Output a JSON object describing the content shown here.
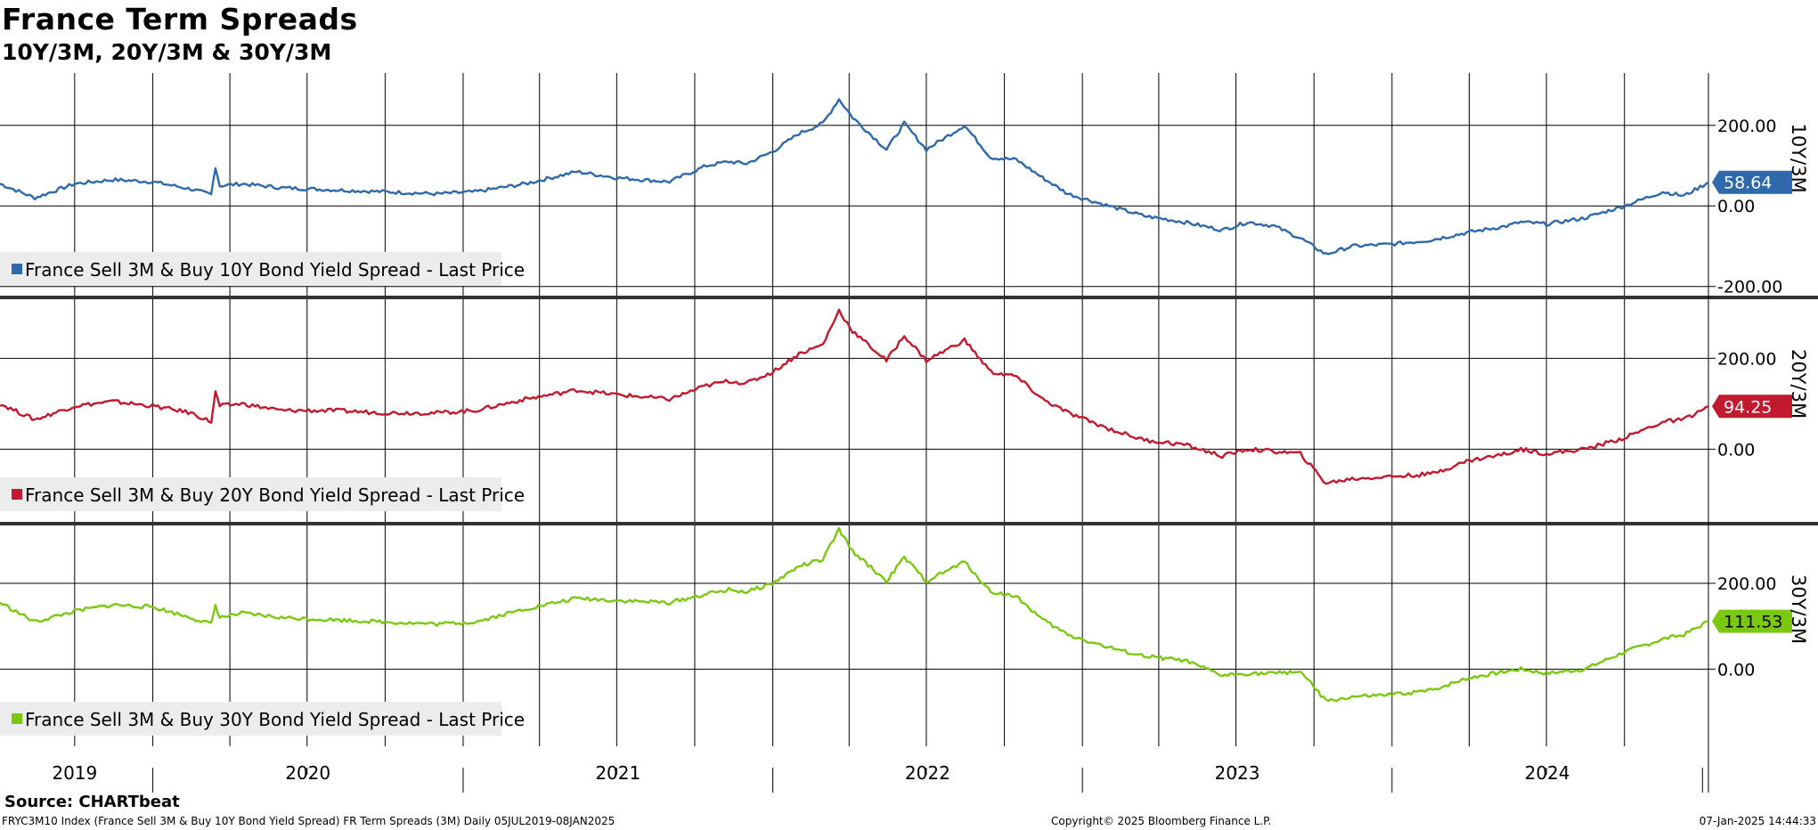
{
  "title": "France Term Spreads",
  "subtitle": "10Y/3M, 20Y/3M & 30Y/3M",
  "source": "Source: CHARTbeat",
  "footer": {
    "left": "FRYC3M10 Index (France Sell 3M & Buy 10Y Bond Yield Spread) FR Term Spreads (3M)  Daily 05JUL2019-08JAN2025",
    "center": "Copyright© 2025 Bloomberg Finance L.P.",
    "right": "07-Jan-2025 14:44:33"
  },
  "chart_data": {
    "type": "line",
    "x_range": [
      "2019-07-05",
      "2025-01-08"
    ],
    "x_tick_labels": [
      "2019",
      "2020",
      "2021",
      "2022",
      "2023",
      "2024"
    ],
    "grid": true,
    "panels": [
      {
        "panel_label": "10Y/3M",
        "legend": "France Sell 3M & Buy 10Y Bond Yield Spread - Last Price",
        "color": "#2e6aab",
        "last_value": "58.64",
        "ylim": [
          -225,
          330
        ],
        "yticks": [
          "200.00",
          "0.00",
          "-200.00"
        ],
        "ytick_values": [
          200,
          0,
          -200
        ],
        "series": {
          "x": [
            "2019-07-05",
            "2019-08-15",
            "2019-10-01",
            "2019-11-15",
            "2020-01-01",
            "2020-02-15",
            "2020-03-10",
            "2020-03-15",
            "2020-03-20",
            "2020-04-15",
            "2020-06-01",
            "2020-08-01",
            "2020-10-01",
            "2020-12-01",
            "2021-01-15",
            "2021-03-15",
            "2021-05-15",
            "2021-07-01",
            "2021-09-01",
            "2021-10-15",
            "2021-11-10",
            "2021-12-01",
            "2022-01-01",
            "2022-02-01",
            "2022-03-01",
            "2022-03-20",
            "2022-04-05",
            "2022-05-15",
            "2022-06-05",
            "2022-07-01",
            "2022-08-15",
            "2022-09-15",
            "2022-10-15",
            "2022-11-15",
            "2022-12-15",
            "2023-02-01",
            "2023-03-15",
            "2023-05-01",
            "2023-06-15",
            "2023-07-15",
            "2023-08-15",
            "2023-09-15",
            "2023-10-15",
            "2023-11-15",
            "2024-01-01",
            "2024-02-15",
            "2024-04-01",
            "2024-05-15",
            "2024-06-01",
            "2024-07-01",
            "2024-08-15",
            "2024-10-01",
            "2024-11-15",
            "2024-12-10",
            "2025-01-08"
          ],
          "y": [
            55,
            20,
            55,
            65,
            60,
            42,
            28,
            98,
            50,
            55,
            45,
            40,
            35,
            30,
            35,
            55,
            85,
            70,
            60,
            100,
            110,
            105,
            135,
            180,
            205,
            265,
            220,
            140,
            205,
            140,
            200,
            120,
            115,
            70,
            30,
            0,
            -25,
            -40,
            -60,
            -40,
            -50,
            -80,
            -120,
            -100,
            -95,
            -85,
            -65,
            -50,
            -40,
            -45,
            -30,
            0,
            35,
            25,
            58.64
          ]
        }
      },
      {
        "panel_label": "20Y/3M",
        "legend": "France Sell 3M & Buy 20Y Bond Yield Spread - Last Price",
        "color": "#c3192f",
        "last_value": "94.25",
        "ylim": [
          -160,
          330
        ],
        "yticks": [
          "200.00",
          "0.00"
        ],
        "ytick_values": [
          200,
          0
        ],
        "series": {
          "x": [
            "2019-07-05",
            "2019-08-15",
            "2019-10-01",
            "2019-11-15",
            "2020-01-01",
            "2020-02-15",
            "2020-03-10",
            "2020-03-15",
            "2020-03-20",
            "2020-04-15",
            "2020-06-01",
            "2020-08-01",
            "2020-10-01",
            "2020-12-01",
            "2021-01-15",
            "2021-03-15",
            "2021-05-15",
            "2021-07-01",
            "2021-09-01",
            "2021-10-15",
            "2021-11-10",
            "2021-12-01",
            "2022-01-01",
            "2022-02-01",
            "2022-03-01",
            "2022-03-20",
            "2022-04-05",
            "2022-05-15",
            "2022-06-05",
            "2022-07-01",
            "2022-08-15",
            "2022-09-15",
            "2022-10-15",
            "2022-11-15",
            "2022-12-15",
            "2023-02-01",
            "2023-03-15",
            "2023-05-01",
            "2023-06-15",
            "2023-07-15",
            "2023-08-15",
            "2023-09-15",
            "2023-10-15",
            "2023-11-15",
            "2024-01-01",
            "2024-02-15",
            "2024-04-01",
            "2024-05-15",
            "2024-06-01",
            "2024-07-01",
            "2024-08-15",
            "2024-10-01",
            "2024-11-15",
            "2024-12-10",
            "2025-01-08"
          ],
          "y": [
            100,
            65,
            95,
            105,
            95,
            80,
            60,
            125,
            95,
            100,
            85,
            85,
            80,
            80,
            85,
            110,
            130,
            120,
            110,
            140,
            150,
            145,
            170,
            210,
            230,
            305,
            260,
            195,
            250,
            195,
            240,
            170,
            160,
            110,
            80,
            45,
            20,
            10,
            -15,
            0,
            -5,
            -10,
            -75,
            -65,
            -60,
            -55,
            -25,
            -10,
            0,
            -10,
            0,
            25,
            60,
            65,
            94.25
          ]
        }
      },
      {
        "panel_label": "30Y/3M",
        "legend": "France Sell 3M & Buy 30Y Bond Yield Spread - Last Price",
        "color": "#7ac910",
        "last_value": "111.53",
        "ylim": [
          -180,
          335
        ],
        "yticks": [
          "200.00",
          "0.00"
        ],
        "ytick_values": [
          200,
          0
        ],
        "series": {
          "x": [
            "2019-07-05",
            "2019-08-15",
            "2019-10-01",
            "2019-11-15",
            "2020-01-01",
            "2020-02-15",
            "2020-03-10",
            "2020-03-15",
            "2020-03-20",
            "2020-04-15",
            "2020-06-01",
            "2020-08-01",
            "2020-10-01",
            "2020-12-01",
            "2021-01-15",
            "2021-03-15",
            "2021-05-15",
            "2021-07-01",
            "2021-09-01",
            "2021-10-15",
            "2021-11-10",
            "2021-12-01",
            "2022-01-01",
            "2022-02-01",
            "2022-03-01",
            "2022-03-20",
            "2022-04-05",
            "2022-05-15",
            "2022-06-05",
            "2022-07-01",
            "2022-08-15",
            "2022-09-15",
            "2022-10-15",
            "2022-11-15",
            "2022-12-15",
            "2023-02-01",
            "2023-03-15",
            "2023-05-01",
            "2023-06-15",
            "2023-07-15",
            "2023-08-15",
            "2023-09-15",
            "2023-10-15",
            "2023-11-15",
            "2024-01-01",
            "2024-02-15",
            "2024-04-01",
            "2024-05-15",
            "2024-06-01",
            "2024-07-01",
            "2024-08-15",
            "2024-10-01",
            "2024-11-15",
            "2024-12-10",
            "2025-01-08"
          ],
          "y": [
            155,
            110,
            135,
            150,
            145,
            120,
            105,
            150,
            120,
            130,
            120,
            115,
            110,
            105,
            110,
            140,
            165,
            160,
            155,
            175,
            185,
            180,
            200,
            240,
            255,
            325,
            275,
            205,
            260,
            205,
            250,
            180,
            170,
            115,
            80,
            50,
            30,
            20,
            -15,
            -10,
            -10,
            -5,
            -75,
            -65,
            -60,
            -50,
            -20,
            -5,
            0,
            -10,
            0,
            40,
            70,
            80,
            111.53
          ]
        }
      }
    ]
  }
}
